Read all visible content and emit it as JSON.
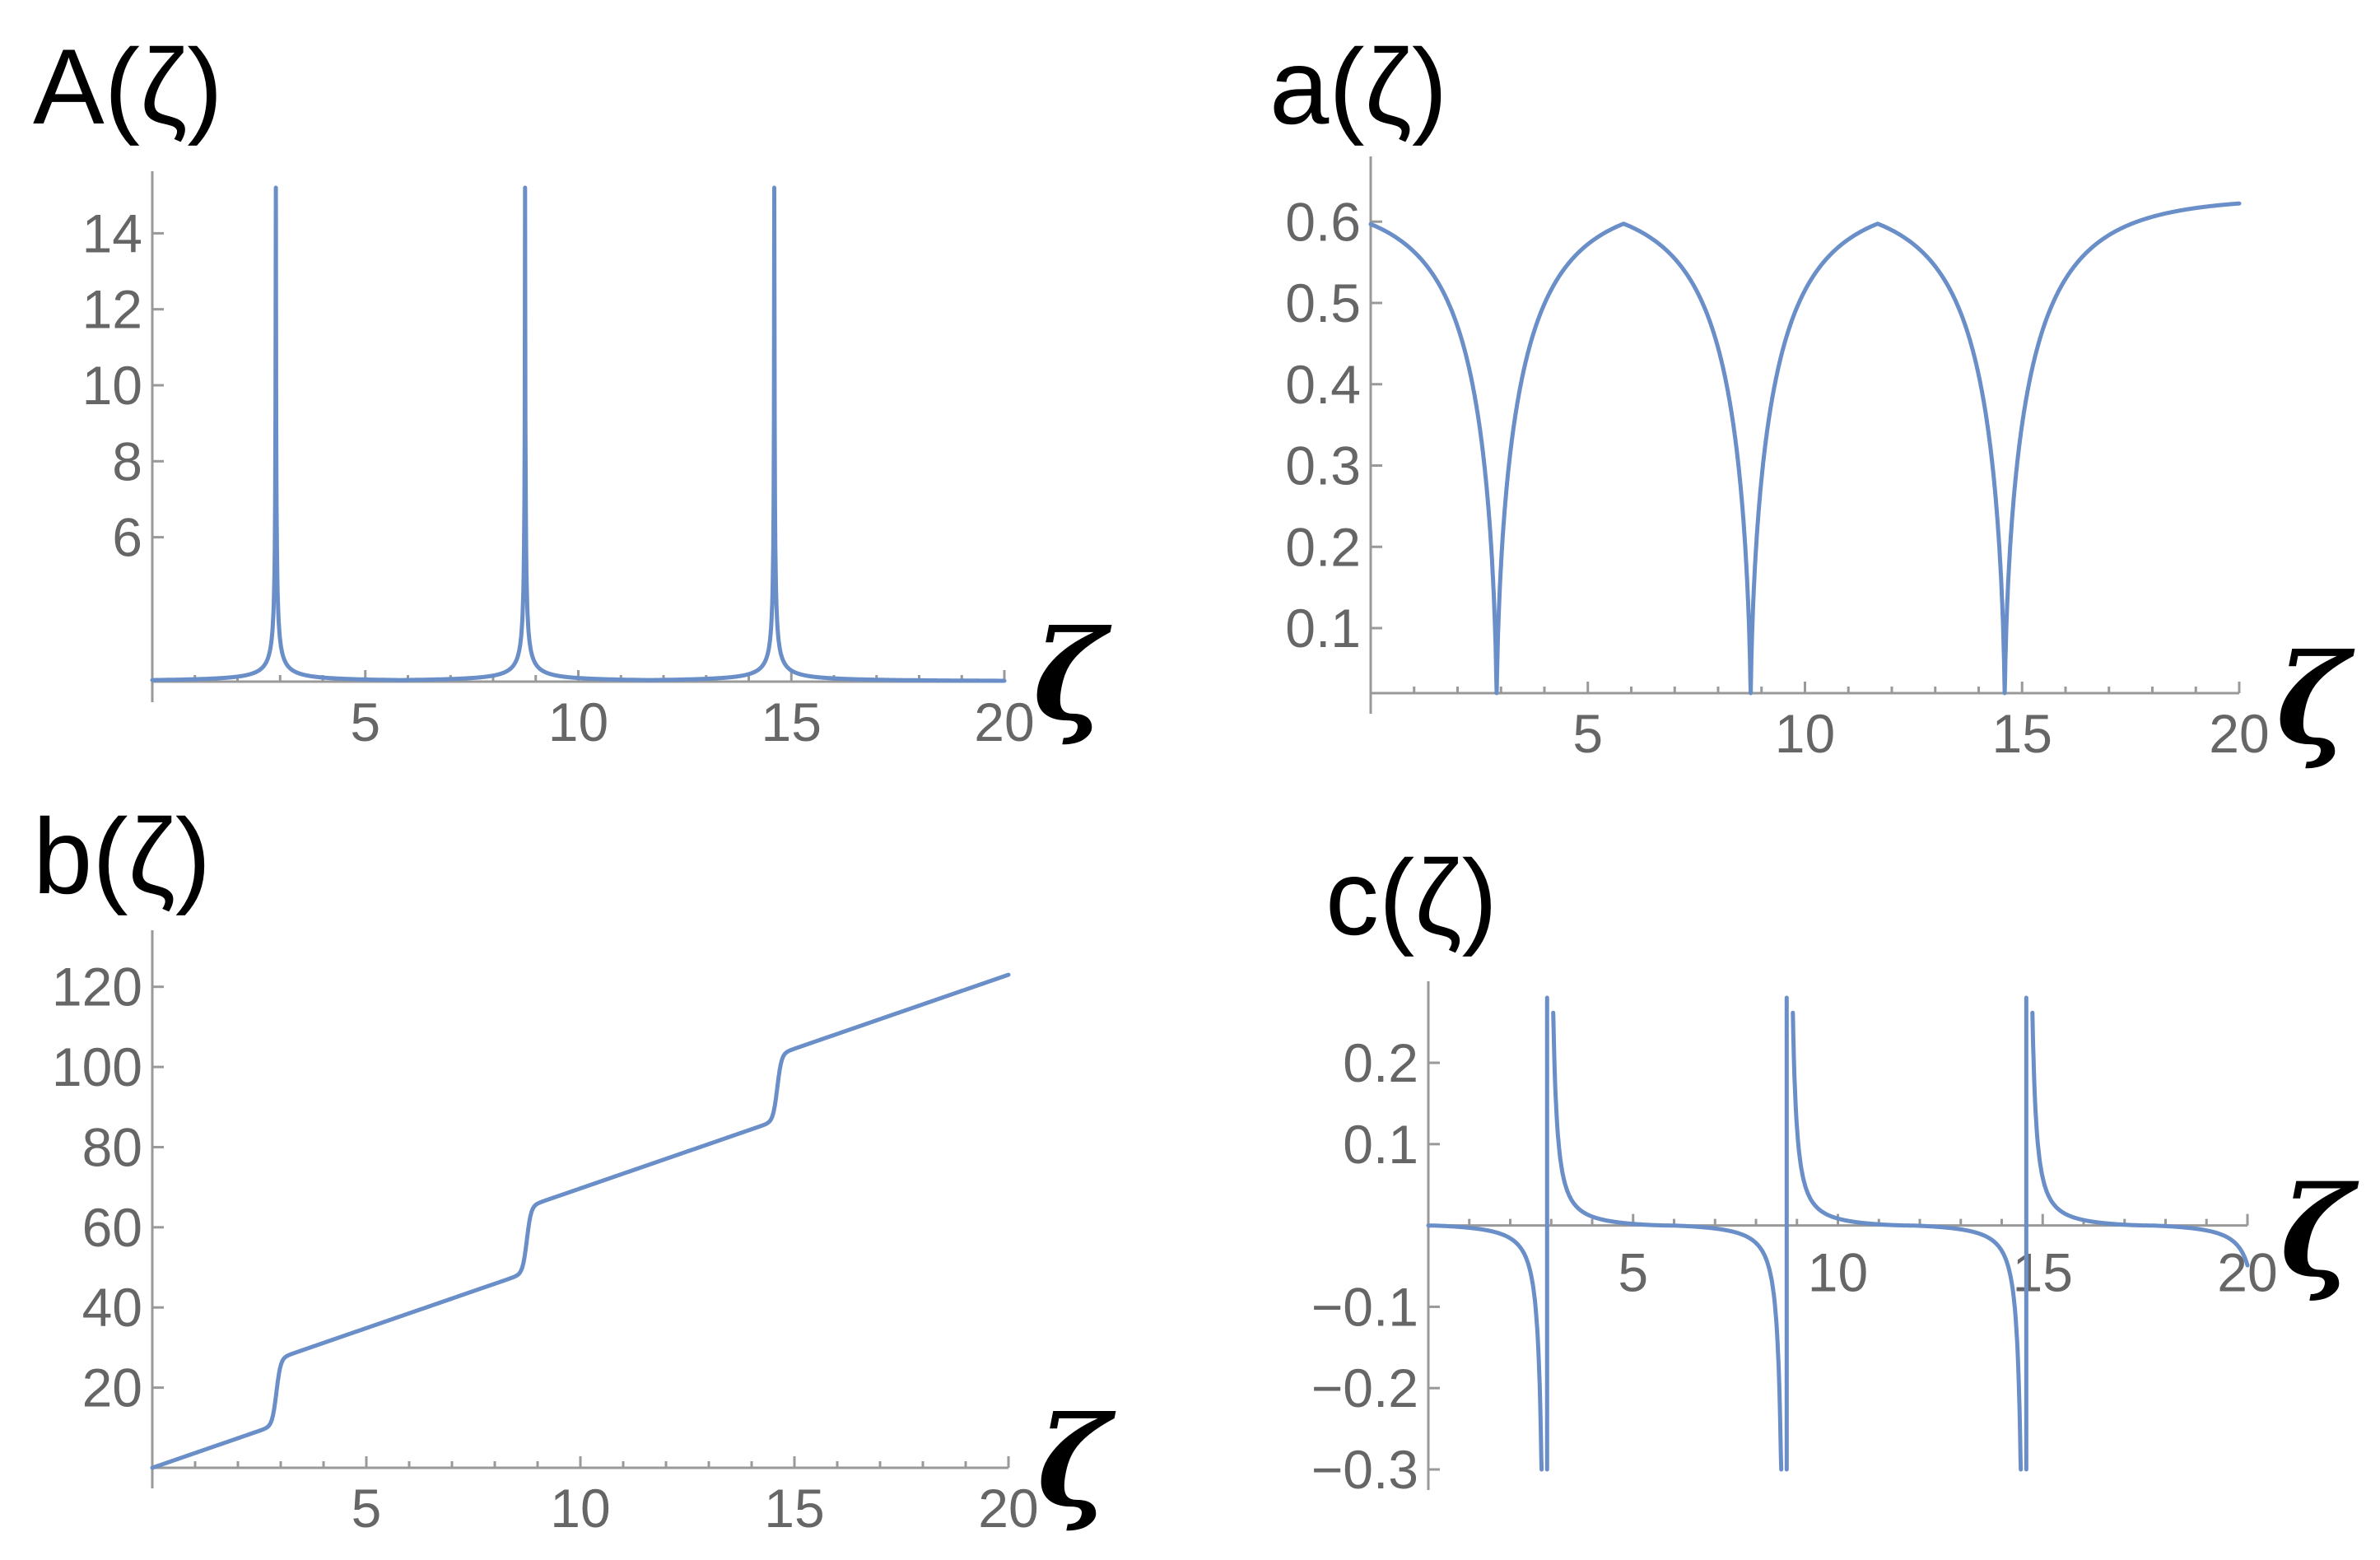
{
  "chart_data": [
    {
      "id": "A",
      "type": "line",
      "title": "A(ζ)",
      "xlabel": "ζ",
      "ylabel": "",
      "xlim": [
        0,
        20
      ],
      "ylim": [
        2.2,
        15.2
      ],
      "x_axis_at": 2.2,
      "x_ticks": [
        5,
        10,
        15,
        20
      ],
      "y_ticks": [
        6,
        8,
        10,
        12,
        14
      ],
      "poles": [
        2.9,
        8.75,
        14.6
      ],
      "color": "#6a8ec8",
      "series": [
        {
          "function": "A",
          "x": [
            0,
            20
          ]
        }
      ]
    },
    {
      "id": "a",
      "type": "line",
      "title": "a(ζ)",
      "xlabel": "ζ",
      "ylabel": "",
      "xlim": [
        0,
        20
      ],
      "ylim": [
        0.02,
        0.66
      ],
      "x_axis_at": 0.02,
      "x_ticks": [
        5,
        10,
        15,
        20
      ],
      "y_ticks": [
        0.1,
        0.2,
        0.3,
        0.4,
        0.5,
        0.6
      ],
      "poles": [
        2.9,
        8.75,
        14.6
      ],
      "color": "#6a8ec8",
      "series": [
        {
          "function": "a",
          "x": [
            0,
            20
          ],
          "max": 0.63
        }
      ]
    },
    {
      "id": "b",
      "type": "line",
      "title": "b(ζ)",
      "xlabel": "ζ",
      "ylabel": "",
      "xlim": [
        0,
        20
      ],
      "ylim": [
        0,
        130
      ],
      "x_axis_at": 0,
      "x_ticks": [
        5,
        10,
        15,
        20
      ],
      "y_ticks": [
        20,
        40,
        60,
        80,
        100,
        120
      ],
      "poles": [
        2.9,
        8.75,
        14.6
      ],
      "color": "#6a8ec8",
      "series": [
        {
          "function": "b",
          "x": [
            0,
            20
          ],
          "end_value": 123
        }
      ]
    },
    {
      "id": "c",
      "type": "line",
      "title": "c(ζ)",
      "xlabel": "ζ",
      "ylabel": "",
      "xlim": [
        0,
        20
      ],
      "ylim": [
        -0.3,
        0.28
      ],
      "x_axis_at": 0,
      "x_ticks": [
        5,
        10,
        15,
        20
      ],
      "y_ticks": [
        -0.3,
        -0.2,
        -0.1,
        0.1,
        0.2
      ],
      "poles": [
        2.9,
        8.75,
        14.6
      ],
      "color": "#6a8ec8",
      "series": [
        {
          "function": "c",
          "x": [
            0,
            20
          ]
        }
      ]
    }
  ]
}
